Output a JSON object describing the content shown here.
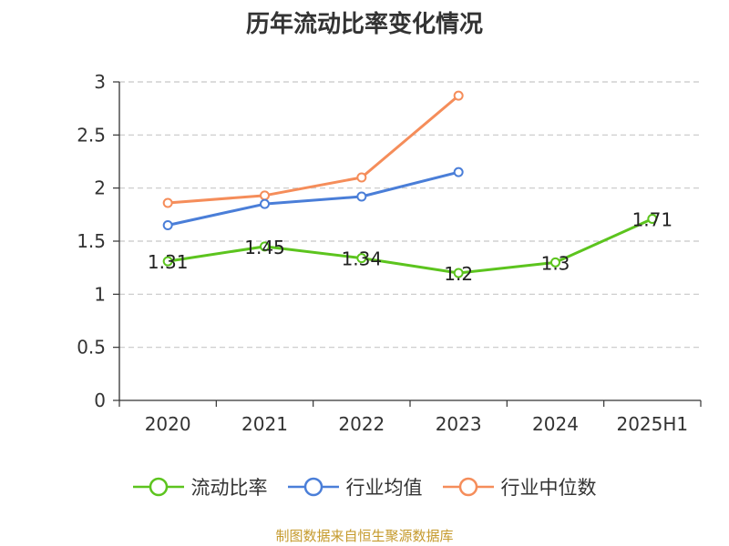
{
  "title": "历年流动比率变化情况",
  "source": "制图数据来自恒生聚源数据库",
  "chart_data": {
    "type": "line",
    "categories": [
      "2020",
      "2021",
      "2022",
      "2023",
      "2024",
      "2025H1"
    ],
    "ylim": [
      0,
      3
    ],
    "yticks": [
      0,
      0.5,
      1,
      1.5,
      2,
      2.5,
      3
    ],
    "ytick_labels": [
      "0",
      "0.5",
      "1",
      "1.5",
      "2",
      "2.5",
      "3"
    ],
    "grid": true,
    "legend_position": "bottom",
    "series": [
      {
        "name": "流动比率",
        "color": "#5cc41e",
        "values": [
          1.31,
          1.45,
          1.34,
          1.2,
          1.3,
          1.71
        ],
        "labels": [
          "1.31",
          "1.45",
          "1.34",
          "1.2",
          "1.3",
          "1.71"
        ]
      },
      {
        "name": "行业均值",
        "color": "#4a7ed8",
        "values": [
          1.65,
          1.85,
          1.92,
          2.15,
          null,
          null
        ]
      },
      {
        "name": "行业中位数",
        "color": "#f58d5a",
        "values": [
          1.86,
          1.93,
          2.1,
          2.87,
          null,
          null
        ]
      }
    ]
  }
}
